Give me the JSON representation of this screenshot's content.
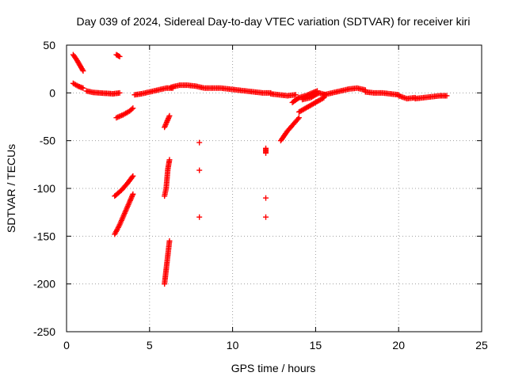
{
  "chart_data": {
    "type": "scatter",
    "title": "Day 039 of 2024, Sidereal Day-to-day VTEC variation (SDTVAR) for receiver kiri",
    "xlabel": "GPS time / hours",
    "ylabel": "SDTVAR / TECUs",
    "xlim": [
      0,
      25
    ],
    "ylim": [
      -250,
      50
    ],
    "xticks": [
      0,
      5,
      10,
      15,
      20,
      25
    ],
    "yticks": [
      -250,
      -200,
      -150,
      -100,
      -50,
      0,
      50
    ],
    "grid": true,
    "marker": "+",
    "series_color": "#ff0000",
    "segments": [
      {
        "x": [
          0.4,
          0.6,
          0.8,
          1.0
        ],
        "y": [
          40,
          35,
          29,
          23
        ]
      },
      {
        "x": [
          0.4,
          0.7,
          1.0
        ],
        "y": [
          10,
          7,
          5
        ]
      },
      {
        "x": [
          1.2,
          1.6,
          2.0,
          2.4,
          2.8,
          3.2
        ],
        "y": [
          2,
          0.5,
          0,
          -0.5,
          -1,
          0
        ]
      },
      {
        "x": [
          3.0,
          3.2
        ],
        "y": [
          40,
          38
        ]
      },
      {
        "x": [
          3.0,
          3.4,
          3.8,
          4.0
        ],
        "y": [
          -26,
          -23,
          -19,
          -16
        ]
      },
      {
        "x": [
          2.9,
          3.3,
          3.7,
          4.0
        ],
        "y": [
          -108,
          -102,
          -94,
          -87
        ]
      },
      {
        "x": [
          2.9,
          3.2,
          3.5,
          3.8,
          4.0
        ],
        "y": [
          -148,
          -138,
          -126,
          -114,
          -106
        ]
      },
      {
        "x": [
          4.1,
          4.5,
          5.0,
          5.5,
          6.0,
          6.4
        ],
        "y": [
          -2,
          -1,
          1,
          3,
          5,
          5
        ]
      },
      {
        "x": [
          6.3,
          6.8,
          7.3,
          7.8,
          8.3,
          8.8,
          9.3,
          9.8,
          10.3,
          10.8,
          11.3,
          11.8,
          12.3
        ],
        "y": [
          6,
          8,
          8,
          7,
          5,
          5,
          5,
          4,
          3,
          2,
          1,
          0,
          0
        ]
      },
      {
        "x": [
          5.9,
          6.0,
          6.1,
          6.2
        ],
        "y": [
          -36,
          -32,
          -28,
          -24
        ]
      },
      {
        "x": [
          5.9,
          6.0,
          6.1,
          6.2
        ],
        "y": [
          -108,
          -100,
          -80,
          -70
        ]
      },
      {
        "x": [
          5.9,
          6.0,
          6.1,
          6.2
        ],
        "y": [
          -200,
          -185,
          -170,
          -155
        ]
      },
      {
        "x": [
          8.0
        ],
        "y": [
          -52
        ]
      },
      {
        "x": [
          8.0
        ],
        "y": [
          -81
        ]
      },
      {
        "x": [
          8.0
        ],
        "y": [
          -130
        ]
      },
      {
        "x": [
          12.0,
          12.0
        ],
        "y": [
          -58,
          -63
        ]
      },
      {
        "x": [
          12.0
        ],
        "y": [
          -110
        ]
      },
      {
        "x": [
          12.0
        ],
        "y": [
          -130
        ]
      },
      {
        "x": [
          12.3,
          12.8,
          13.3,
          13.8
        ],
        "y": [
          -1,
          -2,
          -3,
          -2
        ]
      },
      {
        "x": [
          12.9,
          13.3,
          13.7,
          14.0
        ],
        "y": [
          -50,
          -40,
          -32,
          -26
        ]
      },
      {
        "x": [
          13.6,
          14.0,
          14.4,
          14.8,
          15.1
        ],
        "y": [
          -10,
          -5,
          -3,
          0,
          2
        ]
      },
      {
        "x": [
          14.0,
          14.5,
          15.0,
          15.5
        ],
        "y": [
          -20,
          -15,
          -10,
          -5
        ]
      },
      {
        "x": [
          14.2,
          14.7,
          15.2,
          15.6
        ],
        "y": [
          -7,
          -5,
          0,
          -2
        ]
      },
      {
        "x": [
          15.5,
          16.0,
          16.5,
          17.0,
          17.5,
          18.0
        ],
        "y": [
          -2,
          0,
          2,
          4,
          5,
          3
        ]
      },
      {
        "x": [
          18.0,
          18.5,
          19.0,
          19.5,
          20.0
        ],
        "y": [
          1,
          0,
          0,
          -1,
          -2
        ]
      },
      {
        "x": [
          20.0,
          20.5,
          21.0
        ],
        "y": [
          -3,
          -6,
          -5
        ]
      },
      {
        "x": [
          21.0,
          21.5,
          22.0,
          22.5,
          22.9
        ],
        "y": [
          -6,
          -5,
          -4,
          -3,
          -3
        ]
      }
    ]
  }
}
